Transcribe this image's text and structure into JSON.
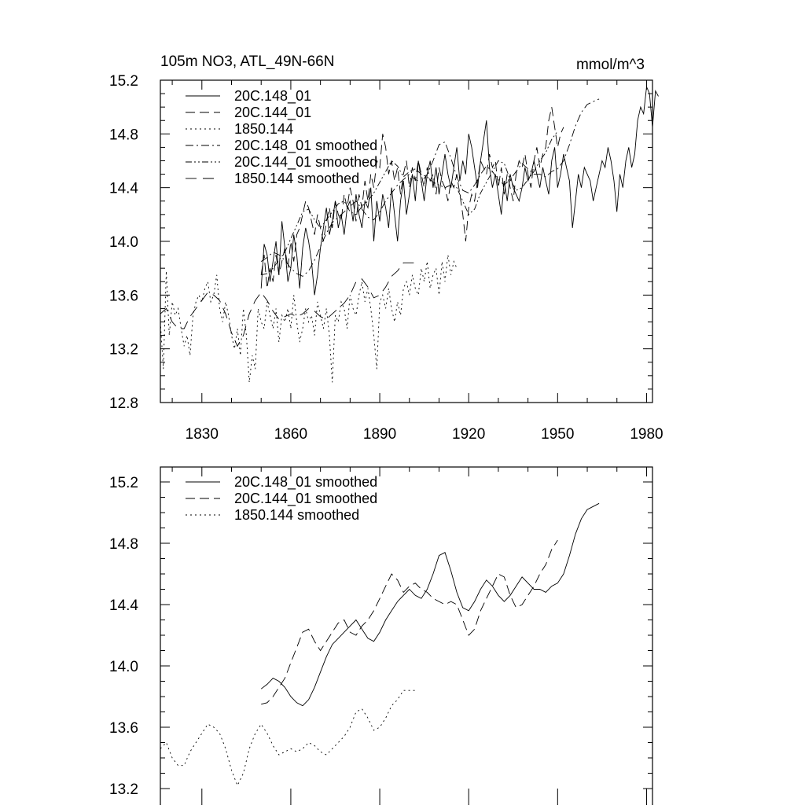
{
  "chart_data": [
    {
      "type": "line",
      "title": "105m NO3, ATL_49N-66N",
      "units": "mmol/m^3",
      "xlim": [
        1816,
        1982
      ],
      "ylim": [
        12.8,
        15.2
      ],
      "xticks": [
        1830,
        1860,
        1890,
        1920,
        1950,
        1980
      ],
      "xtick_labels": [
        "1830",
        "1860",
        "1890",
        "1920",
        "1950",
        "1980"
      ],
      "yticks": [
        12.8,
        13.2,
        13.6,
        14.0,
        14.4,
        14.8,
        15.2
      ],
      "ytick_labels": [
        "12.8",
        "13.2",
        "13.6",
        "14.0",
        "14.4",
        "14.8",
        "15.2"
      ],
      "legend": {
        "position": "top-left",
        "entries": [
          "20C.148_01",
          "20C.144_01",
          "1850.144",
          "20C.148_01 smoothed",
          "20C.144_01 smoothed",
          "1850.144 smoothed"
        ]
      },
      "series": [
        {
          "name": "20C.148_01",
          "style": "solid",
          "x_start": 1850,
          "x_step": 1,
          "values": [
            13.65,
            13.98,
            13.9,
            13.7,
            13.85,
            14.0,
            13.75,
            14.15,
            13.95,
            13.7,
            13.8,
            14.05,
            13.9,
            13.65,
            13.95,
            14.1,
            14.0,
            13.85,
            13.6,
            13.75,
            13.95,
            14.1,
            14.25,
            14.05,
            14.15,
            14.3,
            14.1,
            14.2,
            14.05,
            14.25,
            14.3,
            14.15,
            14.35,
            14.2,
            14.1,
            14.3,
            14.25,
            14.4,
            14.0,
            14.3,
            14.15,
            14.35,
            14.25,
            14.1,
            14.4,
            14.2,
            14.0,
            14.3,
            14.45,
            14.2,
            14.35,
            14.5,
            14.3,
            14.6,
            14.45,
            14.3,
            14.5,
            14.6,
            14.4,
            14.55,
            14.35,
            14.5,
            14.65,
            14.5,
            14.4,
            14.55,
            14.7,
            14.45,
            14.6,
            14.5,
            14.8,
            14.7,
            14.55,
            14.4,
            14.6,
            14.75,
            14.9,
            14.55,
            14.4,
            14.5,
            14.35,
            14.2,
            14.45,
            14.3,
            14.5,
            14.4,
            14.35,
            14.3,
            14.4,
            14.55,
            14.45,
            14.5,
            14.6,
            14.5,
            14.4,
            14.55,
            14.45,
            14.35,
            14.6,
            14.7,
            14.4,
            14.5,
            14.65,
            14.55,
            14.45,
            14.1,
            14.3,
            14.5,
            14.4,
            14.55,
            14.5,
            14.45,
            14.3,
            14.4,
            14.5,
            14.6,
            14.55,
            14.7,
            14.6,
            14.45,
            14.22,
            14.5,
            14.4,
            14.6,
            14.7,
            14.55,
            14.65,
            14.9,
            15.0,
            14.95,
            15.15,
            15.1,
            14.85,
            15.12,
            15.08
          ]
        },
        {
          "name": "20C.144_01",
          "style": "dashed",
          "x_start": 1850,
          "x_step": 1,
          "values": [
            13.75,
            13.9,
            13.65,
            13.8,
            13.7,
            13.9,
            13.75,
            13.85,
            13.95,
            13.8,
            14.0,
            13.85,
            14.05,
            14.1,
            14.2,
            14.3,
            14.25,
            14.15,
            14.05,
            14.2,
            14.1,
            14.0,
            14.15,
            14.25,
            14.1,
            14.3,
            14.2,
            14.15,
            14.35,
            14.25,
            14.4,
            14.3,
            14.15,
            14.35,
            14.25,
            14.45,
            14.3,
            14.5,
            14.4,
            14.6,
            14.55,
            14.8,
            14.7,
            14.5,
            14.6,
            14.45,
            14.55,
            14.35,
            14.5,
            14.6,
            14.4,
            14.55,
            14.45,
            14.6,
            14.5,
            14.4,
            14.55,
            14.45,
            14.5,
            14.35,
            14.55,
            14.45,
            14.4,
            14.3,
            14.45,
            14.4,
            14.5,
            14.35,
            14.2,
            14.0,
            14.25,
            14.35,
            14.3,
            14.45,
            14.6,
            14.55,
            14.5,
            14.65,
            14.55,
            14.6,
            14.4,
            14.55,
            14.35,
            14.5,
            14.4,
            14.3,
            14.5,
            14.6,
            14.55,
            14.65,
            14.5,
            14.4,
            14.6,
            14.7,
            14.55,
            14.65,
            14.7,
            14.9,
            15.0,
            14.85,
            14.7,
            14.8,
            14.85
          ]
        },
        {
          "name": "1850.144",
          "style": "dotted",
          "x_start": 1816,
          "x_step": 1,
          "values": [
            13.4,
            13.05,
            13.78,
            13.3,
            13.55,
            13.45,
            13.5,
            13.35,
            13.22,
            13.3,
            13.15,
            13.45,
            13.55,
            13.6,
            13.55,
            13.65,
            13.7,
            13.55,
            13.6,
            13.75,
            13.5,
            13.4,
            13.55,
            13.45,
            13.3,
            13.2,
            13.35,
            13.15,
            13.5,
            13.3,
            12.95,
            13.15,
            13.05,
            13.5,
            13.4,
            13.35,
            13.55,
            13.45,
            13.35,
            13.5,
            13.25,
            13.45,
            13.4,
            13.5,
            13.35,
            13.6,
            13.4,
            13.25,
            13.35,
            13.5,
            13.4,
            13.45,
            13.3,
            13.55,
            13.45,
            13.35,
            13.5,
            13.3,
            12.95,
            13.45,
            13.4,
            13.55,
            13.5,
            13.35,
            13.6,
            13.5,
            13.45,
            13.6,
            13.7,
            13.55,
            13.65,
            13.5,
            13.3,
            13.05,
            13.55,
            13.6,
            13.5,
            13.65,
            13.5,
            13.4,
            13.55,
            13.45,
            13.65,
            13.7,
            13.6,
            13.75,
            13.65,
            13.6,
            13.8,
            13.7,
            13.85,
            13.65,
            13.75,
            13.8,
            13.6,
            13.85,
            13.7,
            13.9,
            13.75,
            13.85,
            13.8
          ]
        },
        {
          "name": "20C.148_01 smoothed",
          "style": "dash-dot",
          "x_start": 1850,
          "x_step": 2,
          "values": [
            13.85,
            13.88,
            13.92,
            13.9,
            13.86,
            13.8,
            13.76,
            13.74,
            13.78,
            13.86,
            13.96,
            14.06,
            14.14,
            14.18,
            14.22,
            14.26,
            14.3,
            14.24,
            14.18,
            14.16,
            14.22,
            14.3,
            14.36,
            14.42,
            14.46,
            14.5,
            14.46,
            14.44,
            14.5,
            14.6,
            14.72,
            14.74,
            14.62,
            14.48,
            14.38,
            14.36,
            14.42,
            14.5,
            14.56,
            14.52,
            14.46,
            14.42,
            14.46,
            14.52,
            14.58,
            14.54,
            14.5,
            14.5,
            14.48,
            14.52,
            14.54,
            14.6,
            14.72,
            14.86,
            14.96,
            15.02,
            15.04,
            15.06
          ]
        },
        {
          "name": "20C.144_01 smoothed",
          "style": "dash-dot-dot",
          "x_start": 1850,
          "x_step": 2,
          "values": [
            13.75,
            13.76,
            13.8,
            13.86,
            13.92,
            14.02,
            14.12,
            14.22,
            14.24,
            14.16,
            14.1,
            14.16,
            14.22,
            14.28,
            14.3,
            14.22,
            14.2,
            14.26,
            14.3,
            14.36,
            14.44,
            14.52,
            14.6,
            14.56,
            14.48,
            14.52,
            14.54,
            14.5,
            14.48,
            14.44,
            14.42,
            14.4,
            14.42,
            14.4,
            14.3,
            14.2,
            14.24,
            14.36,
            14.44,
            14.52,
            14.6,
            14.58,
            14.46,
            14.38,
            14.4,
            14.46,
            14.52,
            14.6,
            14.66,
            14.76,
            14.82
          ]
        },
        {
          "name": "1850.144 smoothed",
          "style": "long-dash",
          "x_start": 1816,
          "x_step": 2,
          "values": [
            13.46,
            13.5,
            13.4,
            13.35,
            13.35,
            13.44,
            13.5,
            13.56,
            13.62,
            13.6,
            13.56,
            13.46,
            13.32,
            13.22,
            13.3,
            13.46,
            13.56,
            13.62,
            13.56,
            13.48,
            13.42,
            13.44,
            13.46,
            13.44,
            13.46,
            13.5,
            13.48,
            13.44,
            13.42,
            13.46,
            13.5,
            13.54,
            13.6,
            13.7,
            13.72,
            13.66,
            13.58,
            13.6,
            13.66,
            13.74,
            13.78,
            13.84,
            13.84,
            13.84
          ]
        }
      ]
    },
    {
      "type": "line",
      "xlim": [
        1816,
        1982
      ],
      "ylim": [
        13.2,
        15.3
      ],
      "xticks": [
        1830,
        1860,
        1890,
        1920,
        1950,
        1980
      ],
      "yticks": [
        13.2,
        13.6,
        14.0,
        14.4,
        14.8,
        15.2
      ],
      "ytick_labels": [
        "13.2",
        "13.6",
        "14.0",
        "14.4",
        "14.8",
        "15.2"
      ],
      "legend": {
        "position": "top-left",
        "entries": [
          "20C.148_01 smoothed",
          "20C.144_01 smoothed",
          "1850.144 smoothed"
        ]
      },
      "series": [
        {
          "name": "20C.148_01 smoothed",
          "style": "solid",
          "x_start": 1850,
          "x_step": 2,
          "values": [
            13.85,
            13.88,
            13.92,
            13.9,
            13.86,
            13.8,
            13.76,
            13.74,
            13.78,
            13.86,
            13.96,
            14.06,
            14.14,
            14.18,
            14.22,
            14.26,
            14.3,
            14.24,
            14.18,
            14.16,
            14.22,
            14.3,
            14.36,
            14.42,
            14.46,
            14.5,
            14.46,
            14.44,
            14.5,
            14.6,
            14.72,
            14.74,
            14.62,
            14.48,
            14.38,
            14.36,
            14.42,
            14.5,
            14.56,
            14.52,
            14.46,
            14.42,
            14.46,
            14.52,
            14.58,
            14.54,
            14.5,
            14.5,
            14.48,
            14.52,
            14.54,
            14.6,
            14.72,
            14.86,
            14.96,
            15.02,
            15.04,
            15.06
          ]
        },
        {
          "name": "20C.144_01 smoothed",
          "style": "dashed",
          "x_start": 1850,
          "x_step": 2,
          "values": [
            13.75,
            13.76,
            13.8,
            13.86,
            13.92,
            14.02,
            14.12,
            14.22,
            14.24,
            14.16,
            14.1,
            14.16,
            14.22,
            14.28,
            14.3,
            14.22,
            14.2,
            14.26,
            14.3,
            14.36,
            14.44,
            14.52,
            14.6,
            14.56,
            14.48,
            14.52,
            14.54,
            14.5,
            14.48,
            14.44,
            14.42,
            14.4,
            14.42,
            14.4,
            14.3,
            14.2,
            14.24,
            14.36,
            14.44,
            14.52,
            14.6,
            14.58,
            14.46,
            14.38,
            14.4,
            14.46,
            14.52,
            14.6,
            14.66,
            14.76,
            14.82
          ]
        },
        {
          "name": "1850.144 smoothed",
          "style": "dotted",
          "x_start": 1816,
          "x_step": 2,
          "values": [
            13.46,
            13.5,
            13.4,
            13.35,
            13.35,
            13.44,
            13.5,
            13.56,
            13.62,
            13.6,
            13.56,
            13.46,
            13.32,
            13.22,
            13.3,
            13.46,
            13.56,
            13.62,
            13.56,
            13.48,
            13.42,
            13.44,
            13.46,
            13.44,
            13.46,
            13.5,
            13.48,
            13.44,
            13.42,
            13.46,
            13.5,
            13.54,
            13.6,
            13.7,
            13.72,
            13.66,
            13.58,
            13.6,
            13.66,
            13.74,
            13.78,
            13.84,
            13.84,
            13.84
          ]
        }
      ]
    }
  ]
}
